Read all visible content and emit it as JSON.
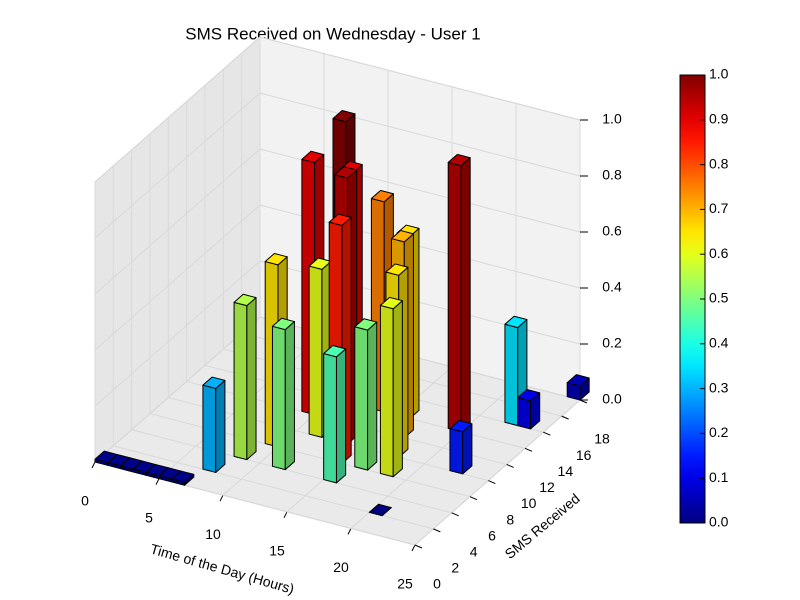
{
  "chart_data": {
    "type": "bar3d",
    "title": "SMS Received on Wednesday - User 1",
    "xlabel": "Time of the Day (Hours)",
    "ylabel": "SMS Received",
    "colormap": "jet",
    "x": [
      0,
      1,
      2,
      3,
      4,
      5,
      6,
      7,
      8,
      9,
      9,
      10,
      11,
      11,
      12,
      13,
      13,
      14,
      15,
      15,
      16,
      16,
      17,
      18,
      19,
      20,
      22,
      22,
      23,
      24
    ],
    "y": [
      0,
      0,
      0,
      0,
      0,
      0,
      0,
      2,
      4,
      6,
      10,
      12,
      4,
      8,
      10,
      8,
      12,
      6,
      4,
      12,
      6,
      10,
      8,
      6,
      12,
      2,
      8,
      14,
      14,
      18
    ],
    "z": [
      0.01,
      0.01,
      0.01,
      0.01,
      0.01,
      0.01,
      0.01,
      0.3,
      0.55,
      0.65,
      0.9,
      1.0,
      0.5,
      0.6,
      0.9,
      0.95,
      0.75,
      0.85,
      0.45,
      0.65,
      0.5,
      0.7,
      0.65,
      0.6,
      0.95,
      0.0,
      0.15,
      0.35,
      0.1,
      0.05
    ],
    "xlim": [
      0,
      25
    ],
    "xticks": [
      0,
      5,
      10,
      15,
      20,
      25
    ],
    "ylim": [
      0,
      18
    ],
    "yticks": [
      0,
      2,
      4,
      6,
      8,
      10,
      12,
      14,
      16,
      18
    ],
    "zlim": [
      0,
      1
    ],
    "zticks": [
      {
        "value": 0,
        "label": "0.0"
      },
      {
        "value": 0.2,
        "label": "0.2"
      },
      {
        "value": 0.4,
        "label": "0.4"
      },
      {
        "value": 0.6,
        "label": "0.6"
      },
      {
        "value": 0.8,
        "label": "0.8"
      },
      {
        "value": 1,
        "label": "1.0"
      }
    ],
    "clim": [
      0,
      1
    ],
    "cticks": [
      {
        "value": 0,
        "label": "0.0"
      },
      {
        "value": 0.1,
        "label": "0.1"
      },
      {
        "value": 0.2,
        "label": "0.2"
      },
      {
        "value": 0.3,
        "label": "0.3"
      },
      {
        "value": 0.4,
        "label": "0.4"
      },
      {
        "value": 0.5,
        "label": "0.5"
      },
      {
        "value": 0.6,
        "label": "0.6"
      },
      {
        "value": 0.7,
        "label": "0.7"
      },
      {
        "value": 0.8,
        "label": "0.8"
      },
      {
        "value": 0.9,
        "label": "0.9"
      },
      {
        "value": 1,
        "label": "1.0"
      }
    ],
    "grid": true
  }
}
